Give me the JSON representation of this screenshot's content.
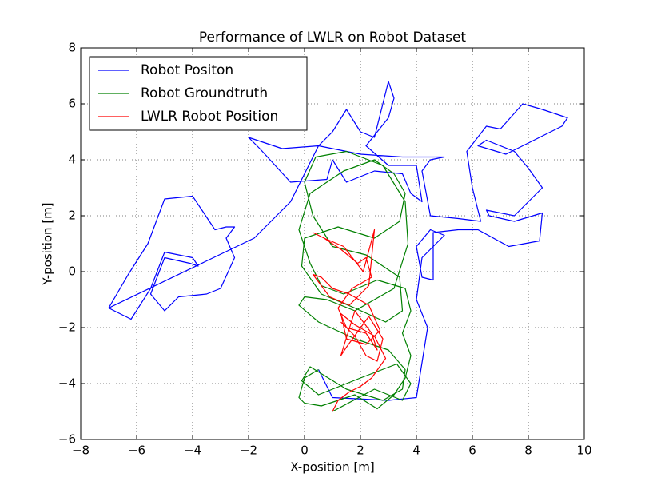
{
  "chart_data": {
    "type": "line",
    "title": "Performance of LWLR on Robot Dataset",
    "x_label": "X-position [m]",
    "y_label": "Y-position [m]",
    "xlim": [
      -8,
      10
    ],
    "ylim": [
      -6,
      8
    ],
    "xticks": [
      {
        "value": -8,
        "label": "−8"
      },
      {
        "value": -6,
        "label": "−6"
      },
      {
        "value": -4,
        "label": "−4"
      },
      {
        "value": -2,
        "label": "−2"
      },
      0,
      2,
      4,
      6,
      8,
      10
    ],
    "yticks": [
      {
        "value": -6,
        "label": "−6"
      },
      {
        "value": -4,
        "label": "−4"
      },
      {
        "value": -2,
        "label": "−2"
      },
      0,
      2,
      4,
      6,
      8
    ],
    "grid": true,
    "legend": "upper left",
    "series": [
      {
        "name": "Robot Positon",
        "color": "#0000ff",
        "x": [
          -7,
          -6.2,
          -5.5,
          -5,
          -4,
          -3.8,
          -4.1,
          -5,
          -5.5,
          -5,
          -4.5,
          -3.5,
          -3,
          -2.5,
          -2.8,
          -2.5,
          -2.8,
          -3.2,
          -4,
          -5,
          -5.6,
          -6.3,
          -7,
          -1.8,
          -1,
          -0.5,
          0,
          0.5,
          1,
          1.5,
          2,
          2.5,
          3,
          3.2,
          3,
          2.2,
          3,
          4,
          4.2,
          3.8,
          3.5,
          2.5,
          1.5,
          1,
          0.8,
          -0.5,
          -1.6,
          -2,
          -0.8,
          0.5,
          2,
          3.5,
          5,
          4.5,
          4.2,
          4.5,
          5.5,
          6.3,
          6,
          5.8,
          6.5,
          7,
          7.8,
          8.5,
          9.4,
          9.2,
          8,
          7.2,
          6.2,
          6.5,
          7.5,
          8,
          8.5,
          8,
          7.5,
          6.5,
          6.6,
          7.5,
          8.5,
          8.4,
          7.3,
          6.2,
          5.5,
          4.6,
          4.6,
          4.2,
          4,
          4.5,
          5,
          4.2,
          4,
          4.4,
          4,
          3,
          1,
          0.5
        ],
        "values": [
          -1.3,
          -1.7,
          -0.6,
          0.7,
          0.5,
          0.2,
          0.3,
          0.5,
          -0.8,
          -1.4,
          -0.9,
          -0.8,
          -0.6,
          0.5,
          1.2,
          1.6,
          1.6,
          1.5,
          2.7,
          2.6,
          1,
          -0.1,
          -1.3,
          1.2,
          2,
          2.5,
          3.5,
          4.5,
          5,
          5.8,
          5,
          4.8,
          6.8,
          6.2,
          5.5,
          4.5,
          3.8,
          3.8,
          2.5,
          2.8,
          3.5,
          3.6,
          3.2,
          4,
          3.3,
          3.2,
          4.4,
          4.8,
          4.4,
          4.5,
          4.2,
          4.1,
          4.1,
          4,
          3.6,
          2,
          1.9,
          1.8,
          3,
          4.3,
          5.2,
          5.1,
          6,
          5.8,
          5.5,
          5.2,
          4.6,
          4.2,
          4.5,
          4.7,
          4.3,
          3.7,
          3,
          2.5,
          2,
          2.2,
          2,
          1.8,
          2.1,
          1.1,
          0.9,
          1.5,
          1.5,
          1.4,
          -0.3,
          -0.2,
          0.9,
          1.5,
          1.3,
          0.5,
          -1,
          -2,
          -4.5,
          -4.6,
          -4.5,
          -3.5
        ]
      },
      {
        "name": "Robot Groundtruth",
        "color": "#008000",
        "x": [
          0.5,
          0,
          -0.2,
          0,
          0.6,
          1.8,
          2.6,
          3.2,
          3.6,
          3.8,
          3.5,
          3.8,
          3.6,
          2.6,
          1.4,
          0.6,
          0.2,
          -0.2,
          0.2,
          1.4,
          2.5,
          3.2,
          3.6,
          3.4,
          2.5,
          1.2,
          0,
          -0.1,
          0.6,
          1.8,
          2.9,
          3.5,
          3.4,
          2.2,
          1,
          0.3,
          0,
          0.4,
          1.5,
          2.8,
          3.6,
          3.7,
          3.2,
          1.8,
          0.8,
          0,
          -0.2,
          0.5,
          1.8,
          3,
          3.6,
          3.5,
          2.8,
          1.5,
          0.2,
          -0.1,
          0.5,
          2,
          3.3,
          3.8,
          3.5,
          2.5,
          1
        ],
        "values": [
          -3.5,
          -3.8,
          -4.5,
          -4.7,
          -4.8,
          -4.4,
          -4.9,
          -4.4,
          -3.8,
          -3,
          -2.2,
          -1.4,
          -0.6,
          -0.3,
          -0.8,
          -0.5,
          0.3,
          1.5,
          2.8,
          3.6,
          4,
          3.5,
          2.8,
          1.8,
          1.2,
          1.6,
          1.2,
          0.2,
          -0.8,
          -1.3,
          -1.8,
          -1.4,
          -0.2,
          0.6,
          0.9,
          2,
          3.2,
          4.1,
          4.3,
          3.8,
          2.5,
          1,
          -0.6,
          -1.4,
          -1,
          -0.9,
          -1.2,
          -1.8,
          -2.4,
          -2.8,
          -3.5,
          -4.2,
          -4.6,
          -4.2,
          -3.4,
          -3.9,
          -4.4,
          -3.8,
          -3.3,
          -4,
          -4.6,
          -4.2,
          -5
        ]
      },
      {
        "name": "LWLR Robot Position",
        "color": "#ff0000",
        "x": [
          1,
          1.2,
          1.6,
          2,
          2.4,
          2.9,
          2.5,
          1.8,
          1.3,
          1.5,
          2.2,
          2.7,
          2.3,
          1.6,
          1,
          0.6,
          0.3,
          0.9,
          1.6,
          2.3,
          2.5,
          2.1,
          1.4,
          0.7,
          0.3,
          0.7,
          1.3,
          1.9,
          2.2,
          2.4,
          1.7,
          1.2,
          1.5,
          2.2,
          2.6,
          2.4,
          1.8,
          1.3,
          1.5,
          2.3,
          2.8,
          2.6,
          2.2,
          1.8,
          1.3
        ],
        "values": [
          -5,
          -4.6,
          -4.3,
          -4.1,
          -3.8,
          -3.1,
          -2.3,
          -1.9,
          -1.5,
          -2.4,
          -2.6,
          -2.1,
          -1.2,
          -0.8,
          -0.6,
          -0.2,
          -0.1,
          -0.9,
          -1.2,
          -0.5,
          1.5,
          0,
          0.9,
          1.2,
          1.4,
          1.2,
          0.8,
          0.3,
          0.5,
          -0.2,
          -0.6,
          -1.3,
          -2,
          -2.2,
          -2.8,
          -2.2,
          -1.4,
          -3,
          -2.7,
          -1.6,
          -2.4,
          -3.2,
          -3,
          -2.3,
          -1.8
        ]
      }
    ]
  }
}
